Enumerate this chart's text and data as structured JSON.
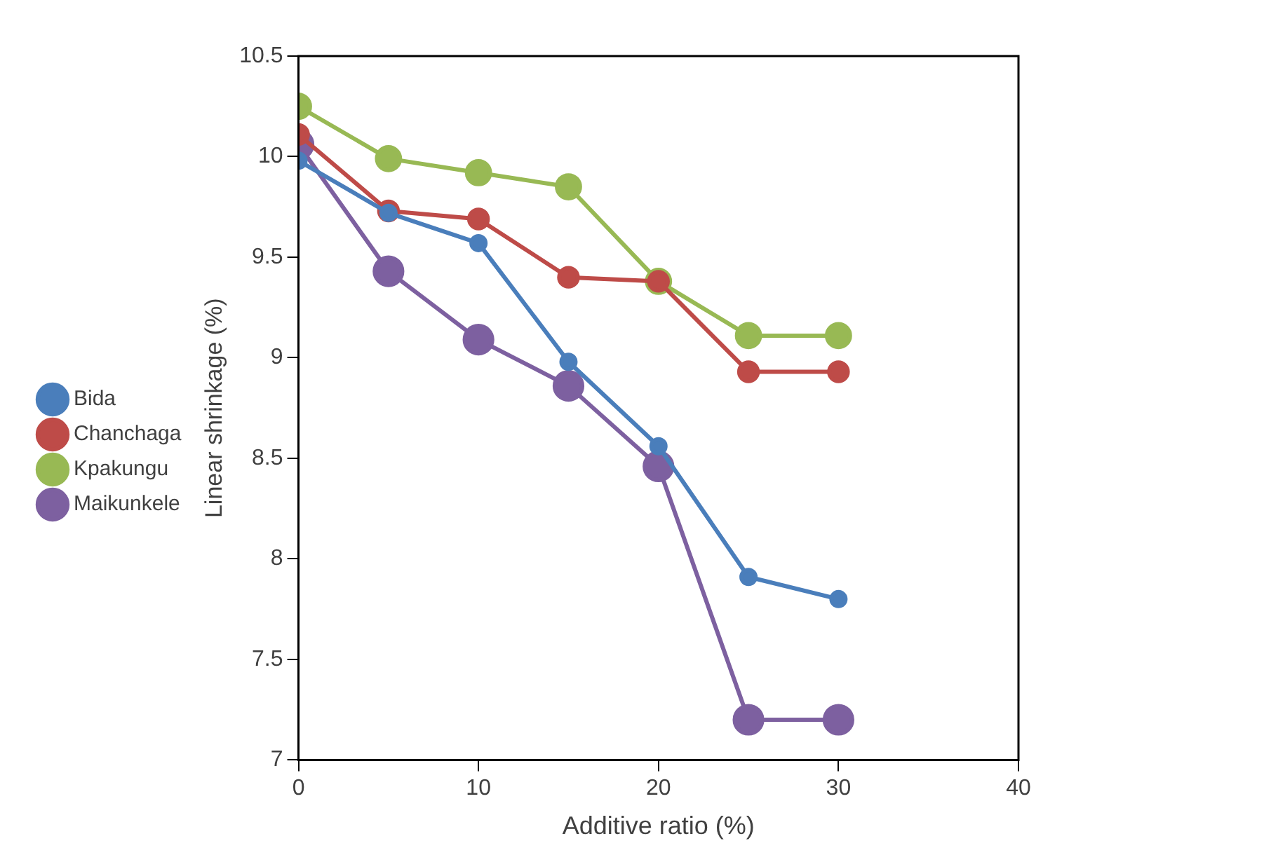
{
  "chart_data": {
    "type": "line",
    "xlabel": "Additive ratio (%)",
    "ylabel": "Linear shrinkage (%)",
    "xlim": [
      0,
      40
    ],
    "xticks": [
      0,
      10,
      20,
      30,
      40
    ],
    "ylim": [
      7,
      10.5
    ],
    "yticks": [
      7,
      7.5,
      8,
      8.5,
      9,
      9.5,
      10,
      10.5
    ],
    "x": [
      0,
      5,
      10,
      15,
      20,
      25,
      30
    ],
    "series": [
      {
        "name": "Bida",
        "color": "#4a7ebb",
        "values": [
          9.98,
          9.72,
          9.57,
          8.98,
          8.56,
          7.91,
          7.8
        ]
      },
      {
        "name": "Chanchaga",
        "color": "#be4b48",
        "values": [
          10.11,
          9.73,
          9.69,
          9.4,
          9.38,
          8.93,
          8.93
        ]
      },
      {
        "name": "Kpakungu",
        "color": "#98b954",
        "values": [
          10.25,
          9.99,
          9.92,
          9.85,
          9.38,
          9.11,
          9.11
        ]
      },
      {
        "name": "Maikunkele",
        "color": "#7d60a0",
        "values": [
          10.06,
          9.43,
          9.09,
          8.86,
          8.46,
          7.2,
          7.2
        ]
      }
    ],
    "marker": "circle",
    "line_style": "solid",
    "grid": false,
    "legend": "left"
  }
}
